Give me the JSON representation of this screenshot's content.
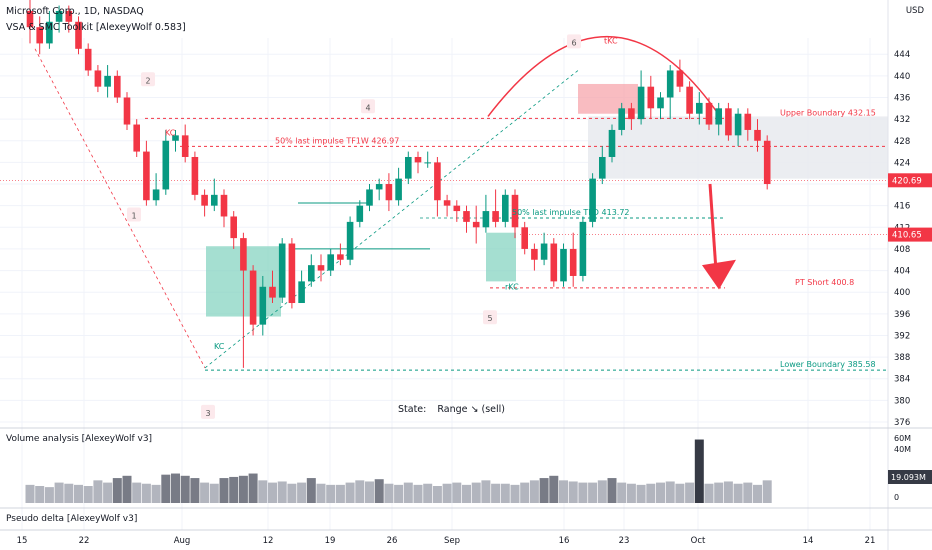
{
  "header": {
    "symbol_line": "Microsoft Corp., 1D, NASDAQ",
    "indicator_line": "VSA & SMC Toolkit [AlexeyWolf 0.583]"
  },
  "currency": "USD",
  "state": {
    "label": "State:",
    "value": "Range ↘ (sell)"
  },
  "panes": {
    "volume_title": "Volume analysis [AlexeyWolf v3]",
    "delta_title": "Pseudo delta [AlexeyWolf v3]"
  },
  "chart_data": {
    "type": "candlestick",
    "ylim": [
      376,
      447
    ],
    "y_ticks": [
      444,
      440,
      436,
      432,
      428,
      424,
      420,
      416,
      412,
      408,
      404,
      400,
      396,
      392,
      388,
      384,
      380,
      376
    ],
    "x_ticks": [
      "15",
      "22",
      "Aug",
      "12",
      "19",
      "26",
      "Sep",
      "16",
      "23",
      "Oct",
      "14",
      "21"
    ],
    "price_tags": [
      {
        "value": "420.69",
        "color": "#f23645"
      },
      {
        "value": "410.65",
        "color": "#f23645"
      }
    ],
    "levels": [
      {
        "label": "Upper Boundary 432.15",
        "value": 432.15,
        "color": "#f23645"
      },
      {
        "label": "50% last impulse TF1W 426.97",
        "value": 426.97,
        "color": "#f23645"
      },
      {
        "label": "50% last impulse TFD 413.72",
        "value": 413.72,
        "color": "#089981"
      },
      {
        "label": "PT Short 400.8",
        "value": 400.8,
        "color": "#f23645"
      },
      {
        "label": "Lower Boundary 385.58",
        "value": 385.58,
        "color": "#089981"
      }
    ],
    "swing_labels": [
      "1",
      "2",
      "3",
      "4",
      "5",
      "6"
    ],
    "markers": [
      "KC",
      "KC",
      "rKC",
      "tKC"
    ],
    "candles": [
      [
        452,
        449,
        455,
        446
      ],
      [
        449,
        446,
        451,
        444
      ],
      [
        446,
        450,
        452,
        445
      ],
      [
        450,
        452,
        453,
        448
      ],
      [
        452,
        450,
        453,
        448
      ],
      [
        450,
        445,
        451,
        444
      ],
      [
        445,
        441,
        446,
        440
      ],
      [
        441,
        438,
        442,
        437
      ],
      [
        438,
        440,
        442,
        436
      ],
      [
        440,
        436,
        441,
        435
      ],
      [
        436,
        431,
        437,
        430
      ],
      [
        431,
        426,
        432,
        425
      ],
      [
        426,
        417,
        428,
        416
      ],
      [
        417,
        419,
        422,
        416
      ],
      [
        419,
        428,
        430,
        418
      ],
      [
        428,
        429,
        430,
        426
      ],
      [
        429,
        425,
        431,
        424
      ],
      [
        425,
        418,
        426,
        417
      ],
      [
        418,
        416,
        419,
        414
      ],
      [
        416,
        418,
        421,
        415
      ],
      [
        418,
        414,
        419,
        412
      ],
      [
        414,
        410,
        415,
        408
      ],
      [
        410,
        404,
        411,
        386
      ],
      [
        404,
        394,
        405,
        392
      ],
      [
        394,
        401,
        403,
        392
      ],
      [
        401,
        399,
        404,
        398
      ],
      [
        399,
        409,
        410,
        398
      ],
      [
        409,
        398,
        410,
        397
      ],
      [
        398,
        402,
        404,
        398
      ],
      [
        402,
        405,
        407,
        401
      ],
      [
        405,
        404,
        407,
        402
      ],
      [
        404,
        407,
        408,
        403
      ],
      [
        407,
        406,
        409,
        405
      ],
      [
        406,
        413,
        414,
        405
      ],
      [
        413,
        416,
        417,
        412
      ],
      [
        416,
        419,
        420,
        415
      ],
      [
        419,
        420,
        421,
        417
      ],
      [
        420,
        417,
        422,
        415
      ],
      [
        417,
        421,
        423,
        416
      ],
      [
        421,
        425,
        426,
        420
      ],
      [
        425,
        424,
        426,
        422
      ],
      [
        424,
        424,
        426,
        423
      ],
      [
        424,
        417,
        425,
        414
      ],
      [
        417,
        416,
        418,
        414
      ],
      [
        416,
        415,
        417,
        413
      ],
      [
        415,
        413,
        416,
        411
      ],
      [
        413,
        412,
        416,
        409
      ],
      [
        412,
        415,
        418,
        411
      ],
      [
        415,
        413,
        419,
        412
      ],
      [
        413,
        418,
        419,
        412
      ],
      [
        418,
        412,
        419,
        410
      ],
      [
        412,
        408,
        413,
        407
      ],
      [
        408,
        406,
        409,
        404
      ],
      [
        406,
        409,
        411,
        405
      ],
      [
        409,
        402,
        410,
        401
      ],
      [
        402,
        408,
        409,
        401
      ],
      [
        408,
        403,
        411,
        401
      ],
      [
        403,
        413,
        414,
        402
      ],
      [
        413,
        421,
        422,
        412
      ],
      [
        421,
        425,
        427,
        420
      ],
      [
        425,
        430,
        431,
        424
      ],
      [
        430,
        434,
        435,
        429
      ],
      [
        434,
        432,
        435,
        430
      ],
      [
        432,
        438,
        441,
        431
      ],
      [
        438,
        434,
        440,
        432
      ],
      [
        434,
        436,
        437,
        432
      ],
      [
        436,
        441,
        442,
        432
      ],
      [
        441,
        438,
        443,
        437
      ],
      [
        438,
        433,
        439,
        432
      ],
      [
        433,
        435,
        437,
        431
      ],
      [
        435,
        431,
        436,
        430
      ],
      [
        431,
        434,
        435,
        429
      ],
      [
        434,
        429,
        435,
        428
      ],
      [
        429,
        433,
        434,
        427
      ],
      [
        433,
        430,
        434,
        428
      ],
      [
        430,
        428,
        432,
        426
      ],
      [
        428,
        420,
        429,
        419
      ]
    ],
    "volume": [
      16,
      15,
      14,
      18,
      17,
      16,
      15,
      20,
      18,
      22,
      24,
      18,
      17,
      16,
      25,
      26,
      24,
      22,
      18,
      17,
      22,
      23,
      24,
      26,
      20,
      18,
      19,
      17,
      18,
      22,
      17,
      16,
      16,
      18,
      20,
      19,
      21,
      17,
      16,
      18,
      16,
      17,
      15,
      17,
      18,
      16,
      18,
      20,
      17,
      17,
      16,
      18,
      20,
      22,
      24,
      20,
      19,
      18,
      18,
      20,
      22,
      18,
      17,
      16,
      17,
      18,
      19,
      17,
      18,
      56,
      17,
      18,
      19,
      17,
      18,
      16,
      20
    ],
    "volume_ticks": [
      "60M",
      "40M",
      "19.093M",
      "0"
    ]
  }
}
